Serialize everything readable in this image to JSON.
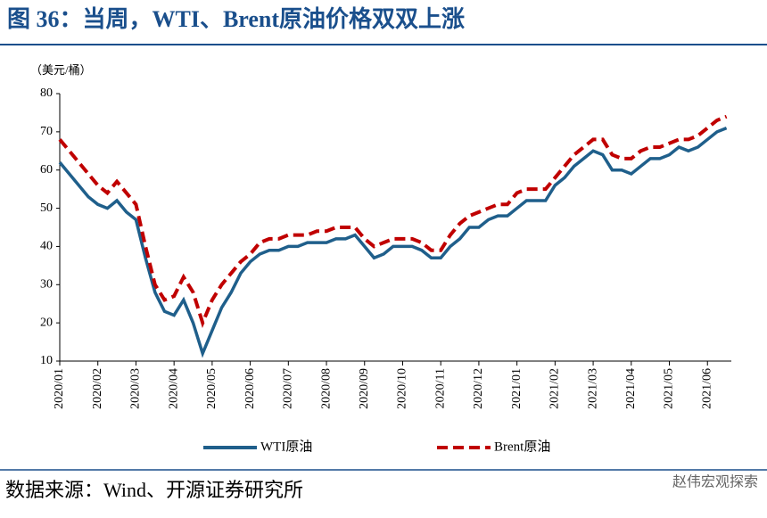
{
  "title": "图 36：当周，WTI、Brent原油价格双双上涨",
  "source": "数据来源：Wind、开源证券研究所",
  "watermark": "赵伟宏观探索",
  "chart_data": {
    "type": "line",
    "y_label": "（美元/桶）",
    "categories": [
      "2020/01",
      null,
      null,
      null,
      "2020/02",
      null,
      null,
      null,
      "2020/03",
      null,
      null,
      null,
      "2020/04",
      null,
      null,
      null,
      "2020/05",
      null,
      null,
      null,
      "2020/06",
      null,
      null,
      null,
      "2020/07",
      null,
      null,
      null,
      "2020/08",
      null,
      null,
      null,
      "2020/09",
      null,
      null,
      null,
      "2020/10",
      null,
      null,
      null,
      "2020/11",
      null,
      null,
      null,
      "2020/12",
      null,
      null,
      null,
      "2021/01",
      null,
      null,
      null,
      "2021/02",
      null,
      null,
      null,
      "2021/03",
      null,
      null,
      null,
      "2021/04",
      null,
      null,
      null,
      "2021/05",
      null,
      null,
      null,
      "2021/06",
      null,
      null
    ],
    "series": [
      {
        "name": "WTI原油",
        "color": "#1f5f8b",
        "dash": false,
        "values": [
          62,
          59,
          56,
          53,
          51,
          50,
          52,
          49,
          47,
          37,
          28,
          23,
          22,
          26,
          20,
          12,
          18,
          24,
          28,
          33,
          36,
          38,
          39,
          39,
          40,
          40,
          41,
          41,
          41,
          42,
          42,
          43,
          40,
          37,
          38,
          40,
          40,
          40,
          39,
          37,
          37,
          40,
          42,
          45,
          45,
          47,
          48,
          48,
          50,
          52,
          52,
          52,
          56,
          58,
          61,
          63,
          65,
          64,
          60,
          60,
          59,
          61,
          63,
          63,
          64,
          66,
          65,
          66,
          68,
          70,
          71
        ]
      },
      {
        "name": "Brent原油",
        "color": "#c00000",
        "dash": true,
        "values": [
          68,
          65,
          62,
          59,
          56,
          54,
          57,
          54,
          51,
          40,
          30,
          26,
          27,
          32,
          28,
          20,
          26,
          30,
          33,
          36,
          38,
          41,
          42,
          42,
          43,
          43,
          43,
          44,
          44,
          45,
          45,
          45,
          42,
          40,
          41,
          42,
          42,
          42,
          41,
          39,
          39,
          43,
          46,
          48,
          49,
          50,
          51,
          51,
          54,
          55,
          55,
          55,
          58,
          61,
          64,
          66,
          68,
          68,
          64,
          63,
          63,
          65,
          66,
          66,
          67,
          68,
          68,
          69,
          71,
          73,
          74
        ]
      }
    ],
    "ylim": [
      10,
      80
    ],
    "yticks": [
      10,
      20,
      30,
      40,
      50,
      60,
      70,
      80
    ],
    "grid": false
  }
}
